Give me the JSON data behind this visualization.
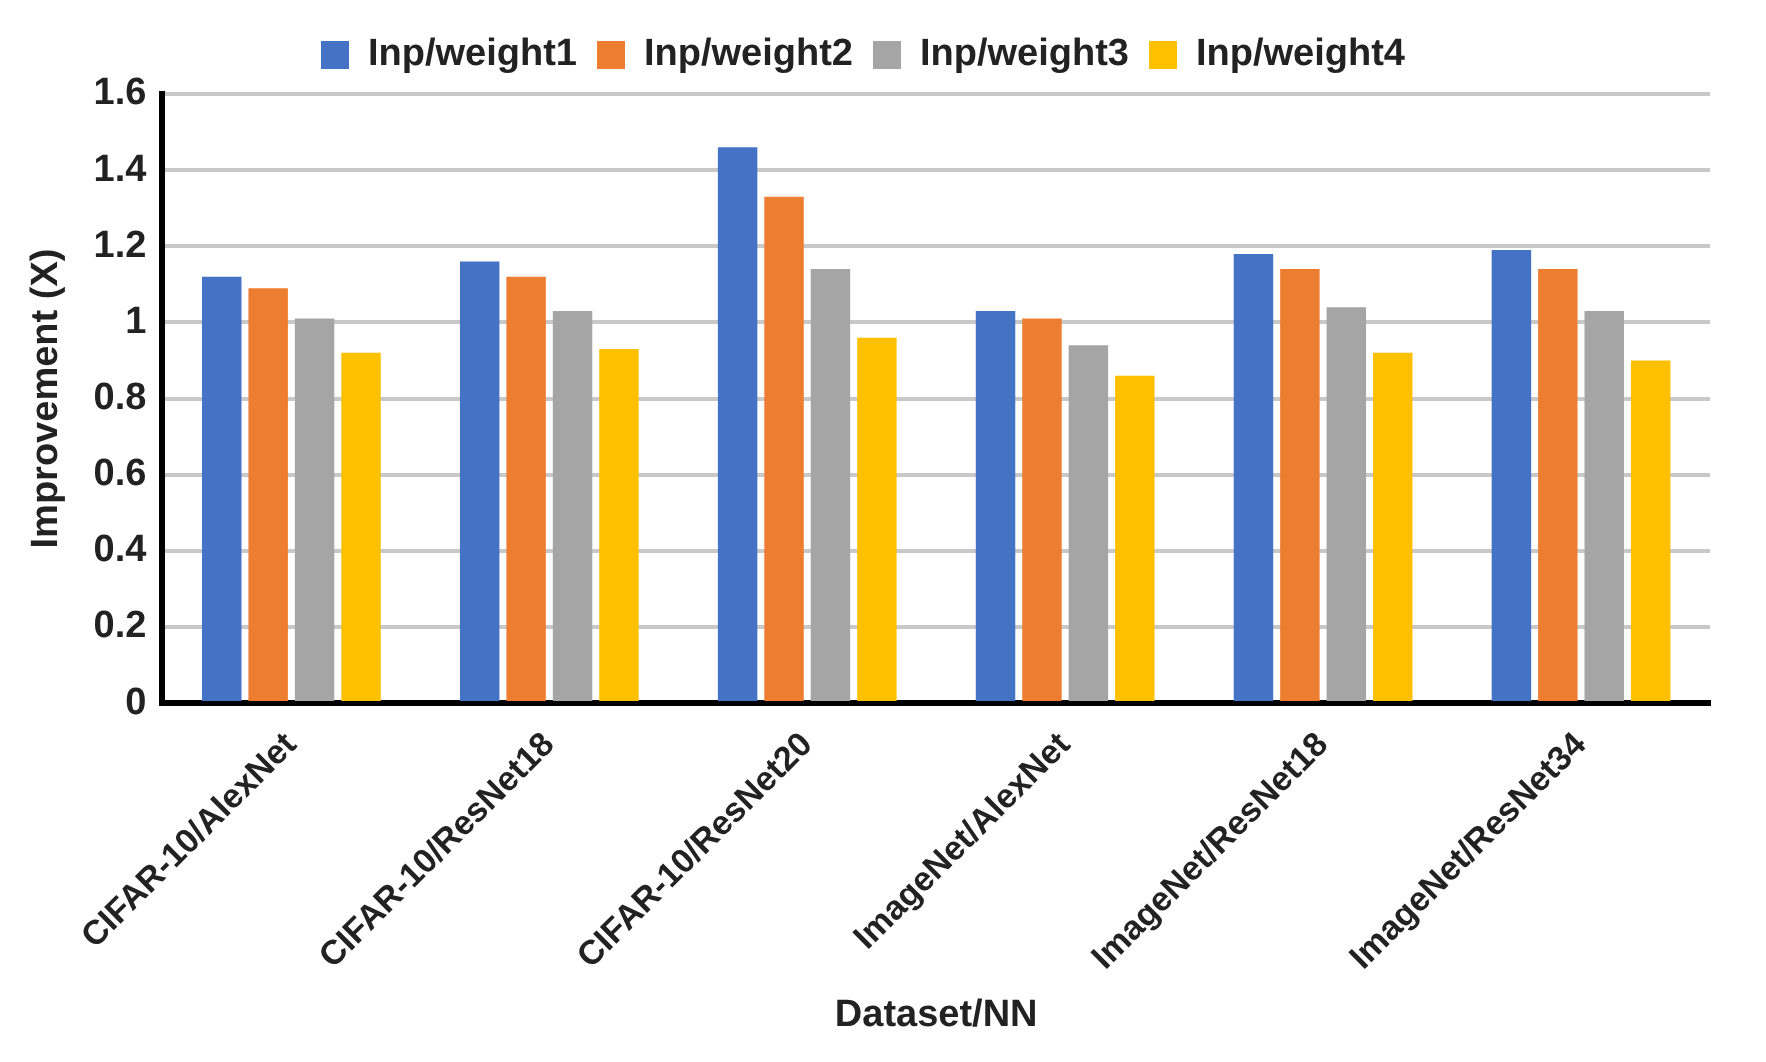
{
  "chart_data": {
    "type": "bar",
    "xlabel": "Dataset/NN",
    "ylabel": "Improvement (X)",
    "categories": [
      "CIFAR-10/AlexNet",
      "CIFAR-10/ResNet18",
      "CIFAR-10/ResNet20",
      "ImageNet/AlexNet",
      "ImageNet/ResNet18",
      "ImageNet/ResNet34"
    ],
    "series": [
      {
        "name": "Inp/weight1",
        "color": "#4472c4",
        "values": [
          1.12,
          1.16,
          1.46,
          1.03,
          1.18,
          1.19
        ]
      },
      {
        "name": "Inp/weight2",
        "color": "#ed7d31",
        "values": [
          1.09,
          1.12,
          1.33,
          1.01,
          1.14,
          1.14
        ]
      },
      {
        "name": "Inp/weight3",
        "color": "#a5a5a5",
        "values": [
          1.01,
          1.03,
          1.14,
          0.94,
          1.04,
          1.03
        ]
      },
      {
        "name": "Inp/weight4",
        "color": "#ffc000",
        "values": [
          0.92,
          0.93,
          0.96,
          0.86,
          0.92,
          0.9
        ]
      }
    ],
    "ylim": [
      0,
      1.6
    ],
    "yticks": [
      0,
      0.2,
      0.4,
      0.6,
      0.8,
      1,
      1.2,
      1.4,
      1.6
    ],
    "grid": "y",
    "legend": "top"
  }
}
